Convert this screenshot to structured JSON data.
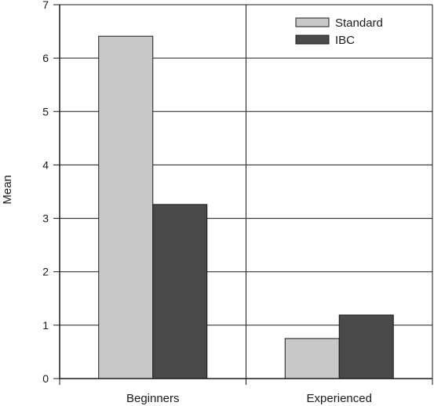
{
  "chart_data": {
    "type": "bar",
    "title": "",
    "xlabel": "",
    "ylabel": "Mean",
    "ylim": [
      0,
      7
    ],
    "yticks": [
      "0",
      "1",
      "2",
      "3",
      "4",
      "5",
      "6",
      "7"
    ],
    "categories": [
      "Beginners",
      "Experienced"
    ],
    "series": [
      {
        "name": "Standard",
        "color": "#c8c8c8",
        "values": [
          6.41,
          0.75
        ]
      },
      {
        "name": "IBC",
        "color": "#4a4a4a",
        "values": [
          3.26,
          1.19
        ]
      }
    ],
    "grid": true,
    "legend_position": "top-right"
  }
}
